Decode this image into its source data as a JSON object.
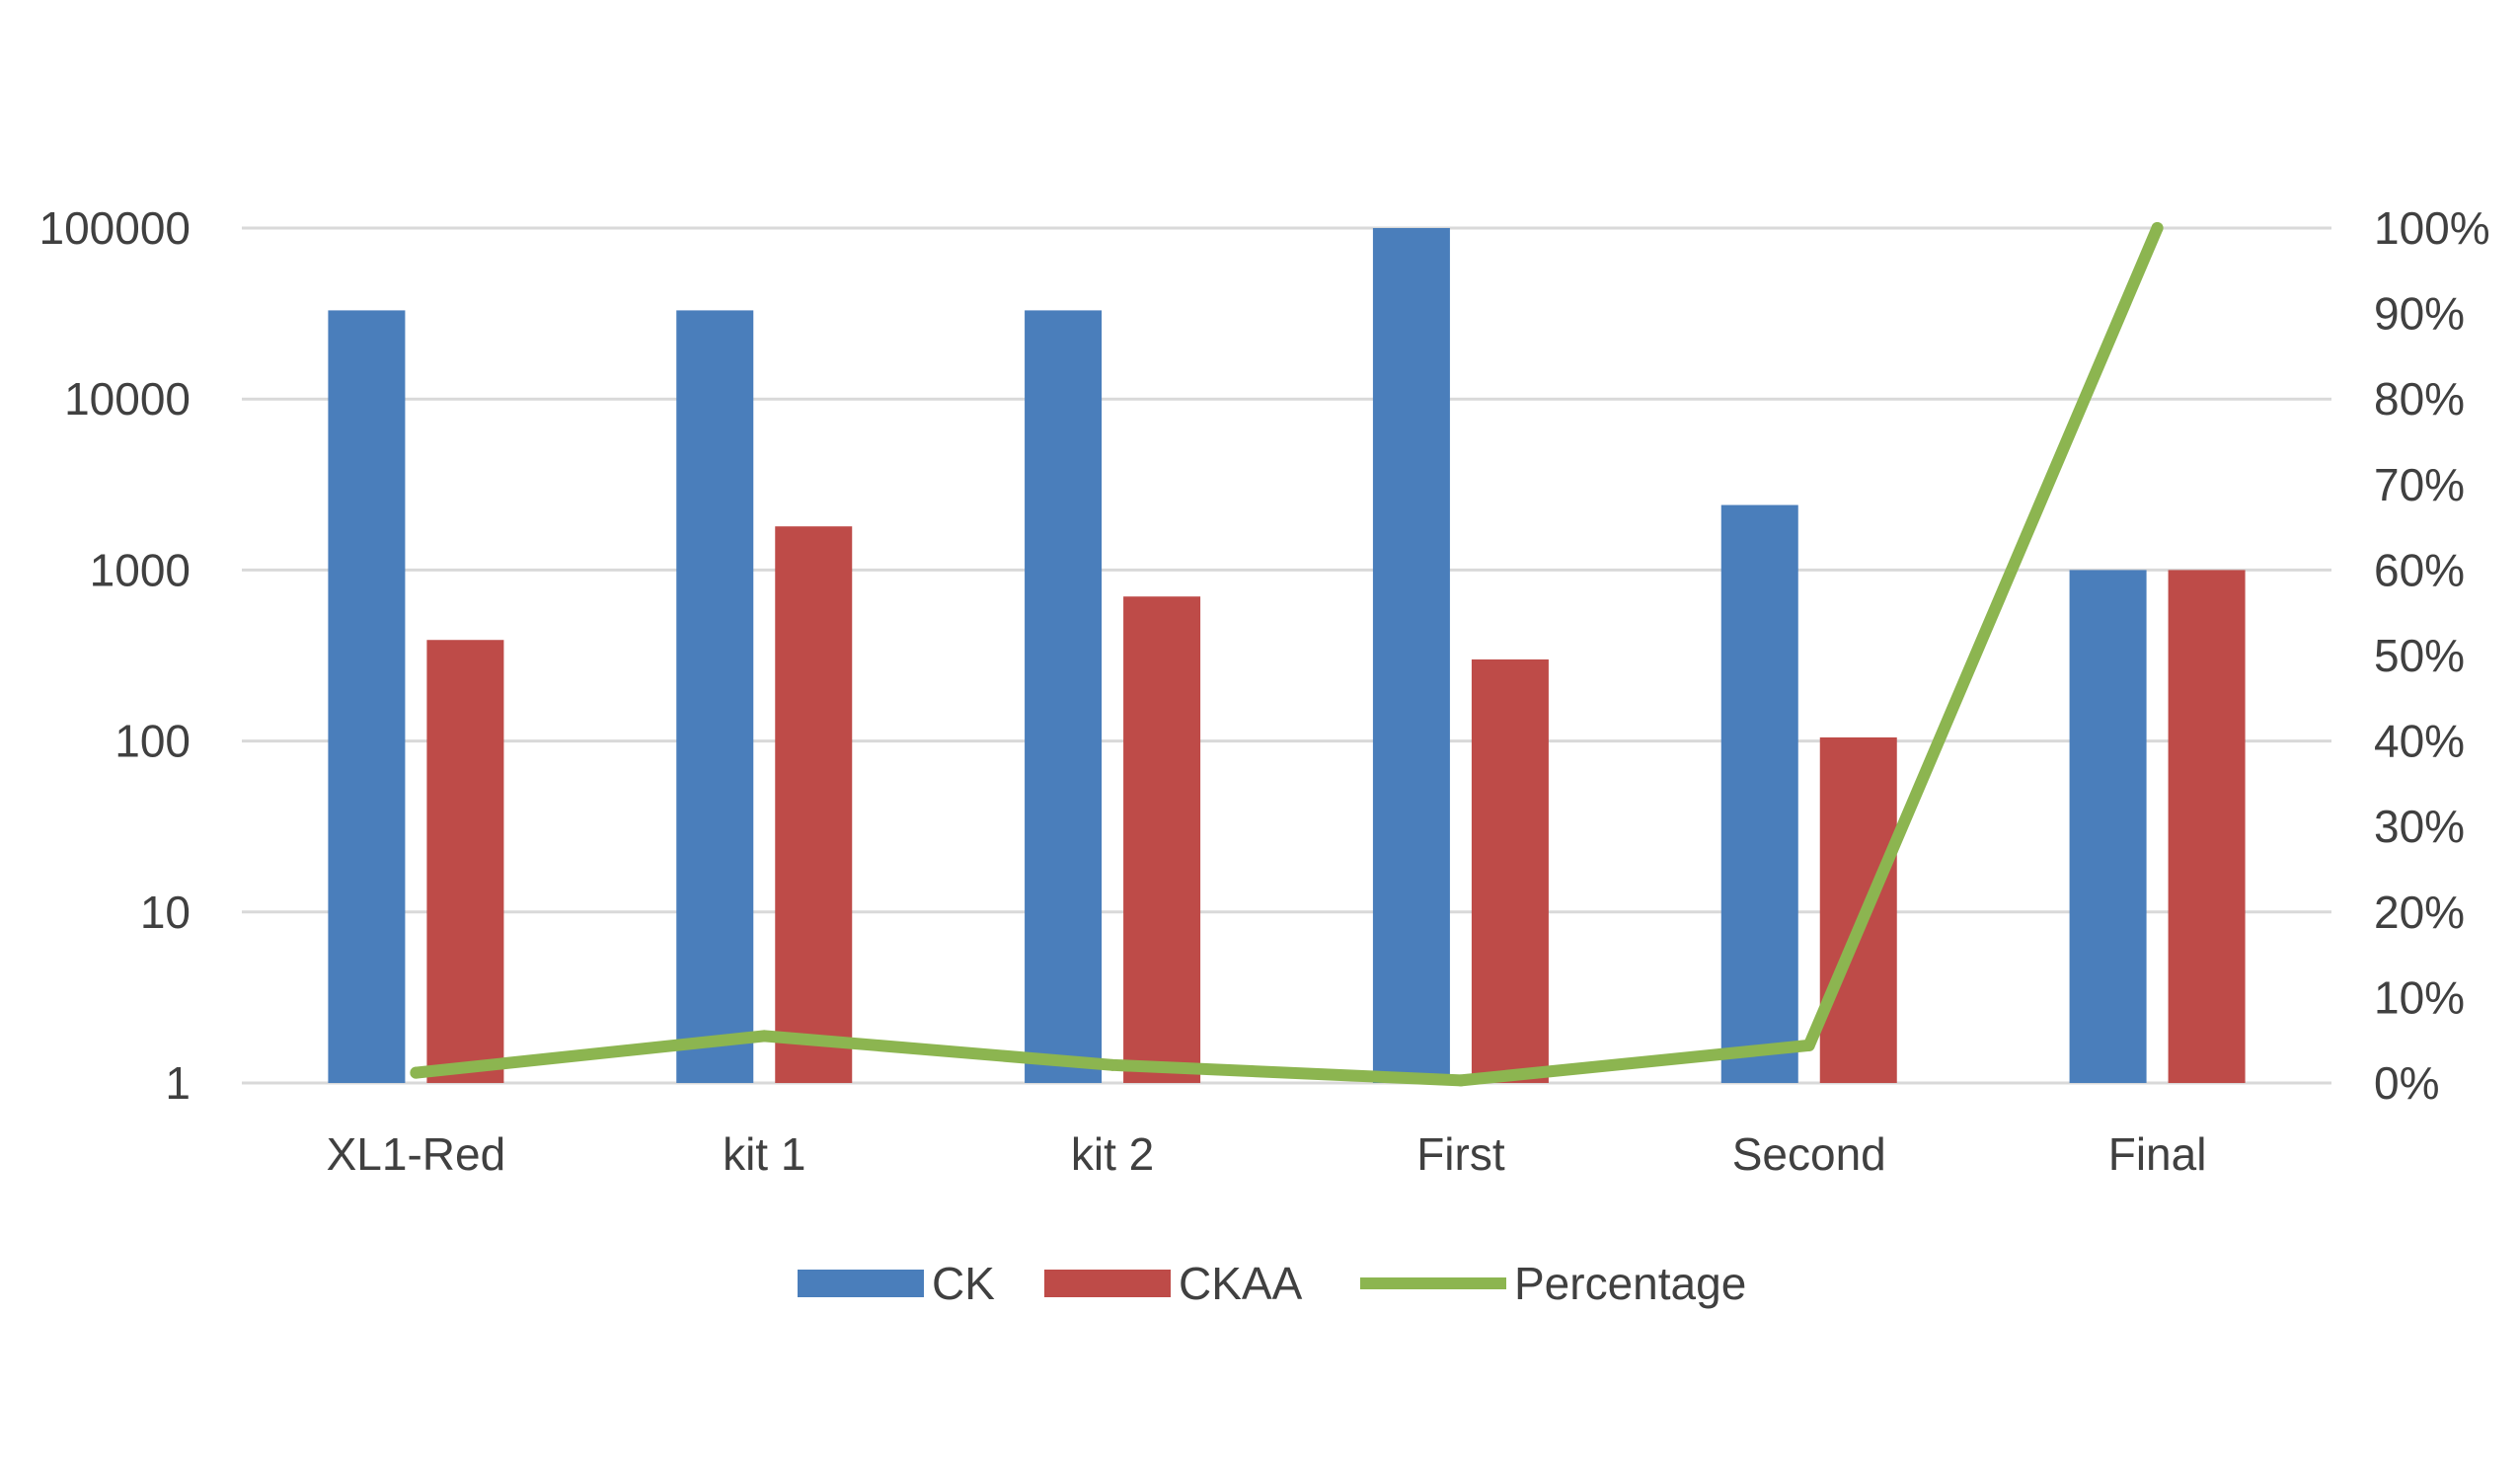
{
  "chart_data": {
    "type": "bar",
    "categories": [
      "XL1-Red",
      "kit 1",
      "kit 2",
      "First",
      "Second",
      "Final"
    ],
    "series": [
      {
        "name": "CK",
        "type": "bar",
        "axis": "left",
        "color": "#4a7ebb",
        "values": [
          33000,
          33000,
          33000,
          100000,
          2400,
          1000
        ]
      },
      {
        "name": "CKAA",
        "type": "bar",
        "axis": "left",
        "color": "#be4b48",
        "values": [
          390,
          1800,
          700,
          300,
          105,
          1000
        ]
      },
      {
        "name": "Percentage",
        "type": "line",
        "axis": "right",
        "color": "#8cb550",
        "values": [
          1.2,
          5.5,
          2.1,
          0.3,
          4.4,
          100
        ]
      }
    ],
    "y_left": {
      "scale": "log",
      "range": [
        1,
        100000
      ],
      "tick_labels": [
        "1",
        "10",
        "100",
        "1000",
        "10000",
        "100000"
      ]
    },
    "y_right": {
      "range": [
        0,
        100
      ],
      "tick_labels": [
        "0%",
        "10%",
        "20%",
        "30%",
        "40%",
        "50%",
        "60%",
        "70%",
        "80%",
        "90%",
        "100%"
      ]
    },
    "grid": true,
    "legend": "bottom",
    "title": "",
    "xlabel": "",
    "ylabel": ""
  }
}
